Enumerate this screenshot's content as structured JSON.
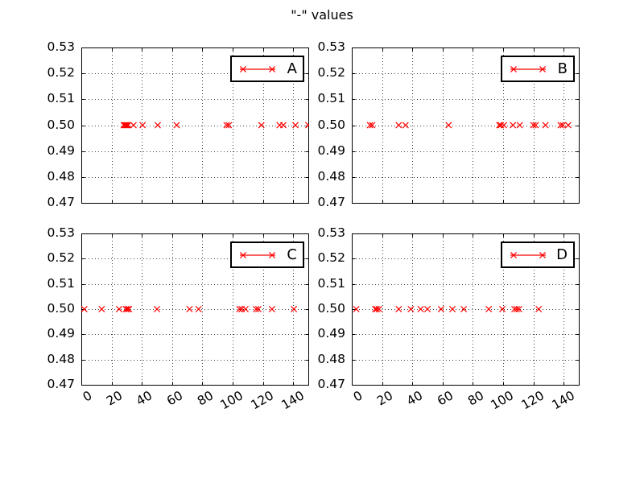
{
  "title": "\"-\" values",
  "figure": {
    "background": "#ffffff",
    "frame_color": "#000000",
    "grid_color": "#000000",
    "marker_color": "#ff0000"
  },
  "chart_data": {
    "type": "scatter",
    "title": "\"-\" values",
    "marker": "x",
    "color": "#ff0000",
    "grid": true,
    "legend_position": "upper right",
    "xlim": [
      0,
      150
    ],
    "ylim": [
      0.47,
      0.53
    ],
    "xticks": [
      0,
      20,
      40,
      60,
      80,
      100,
      120,
      140
    ],
    "xticklabels": [
      "0",
      "20",
      "40",
      "60",
      "80",
      "100",
      "120",
      "140"
    ],
    "yticks": [
      0.53,
      0.52,
      0.51,
      0.5,
      0.49,
      0.48,
      0.47
    ],
    "yticklabels": [
      "0.53",
      "0.52",
      "0.51",
      "0.50",
      "0.49",
      "0.48",
      "0.47"
    ],
    "y_value_all_points": 0.5,
    "subplots": [
      {
        "name": "A",
        "x": [
          28,
          28.8,
          29.5,
          30.2,
          31,
          34.5,
          40.5,
          50.5,
          63,
          96,
          97.5,
          119,
          131,
          133.5,
          141.5,
          150
        ],
        "xticklabels_visible": false
      },
      {
        "name": "B",
        "x": [
          12,
          13.5,
          31,
          35.5,
          64,
          97.5,
          98.5,
          100.5,
          106.5,
          111,
          120,
          121.5,
          128,
          138,
          139.5,
          143
        ],
        "xticklabels_visible": false
      },
      {
        "name": "C",
        "x": [
          2,
          13.5,
          25,
          29.5,
          30.5,
          31.5,
          50,
          71.5,
          77.5,
          104.5,
          106,
          108.5,
          115.5,
          117,
          126,
          140.5
        ],
        "xticklabels_visible": true
      },
      {
        "name": "D",
        "x": [
          3,
          15.5,
          16.5,
          18,
          31,
          39,
          45.5,
          50,
          59,
          66.5,
          74,
          90.5,
          99.5,
          107.5,
          109,
          110.5,
          123.5
        ],
        "xticklabels_visible": true
      }
    ]
  }
}
